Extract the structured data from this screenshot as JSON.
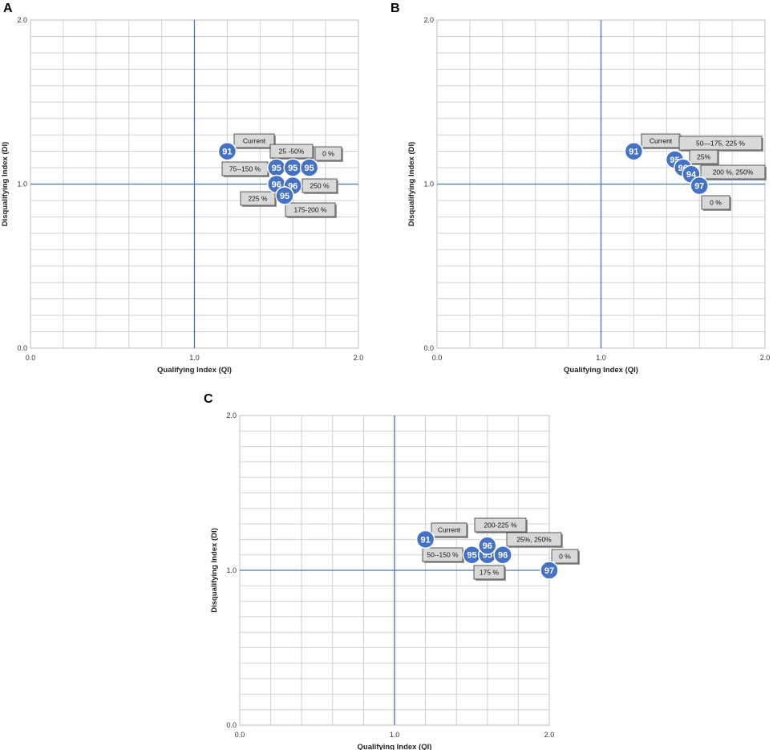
{
  "chart_data": [
    {
      "panel": "A",
      "type": "scatter",
      "xlabel": "Qualifying Index (QI)",
      "ylabel": "Disqualifying Index (DI)",
      "xlim": [
        0,
        2
      ],
      "ylim": [
        0,
        2
      ],
      "xticks": [
        "0.0",
        "1.0",
        "2.0"
      ],
      "yticks": [
        "0.0",
        "1.0",
        "2.0"
      ],
      "reference_lines": {
        "x": 1.0,
        "y": 1.0
      },
      "grid": true,
      "points": [
        {
          "x": 1.2,
          "y": 1.2,
          "score": "91"
        },
        {
          "x": 1.5,
          "y": 1.1,
          "score": "95"
        },
        {
          "x": 1.6,
          "y": 1.1,
          "score": "95"
        },
        {
          "x": 1.7,
          "y": 1.1,
          "score": "95"
        },
        {
          "x": 1.5,
          "y": 1.0,
          "score": "96"
        },
        {
          "x": 1.6,
          "y": 0.99,
          "score": "96"
        },
        {
          "x": 1.55,
          "y": 0.93,
          "score": "95"
        }
      ],
      "labels": [
        "Current",
        "25 -50%",
        "0 %",
        "75--150 %",
        "250 %",
        "225 %",
        "175-200 %"
      ]
    },
    {
      "panel": "B",
      "type": "scatter",
      "xlabel": "Qualifying Index (QI)",
      "ylabel": "Disqualifying Index (DI)",
      "xlim": [
        0,
        2
      ],
      "ylim": [
        0,
        2
      ],
      "xticks": [
        "0.0",
        "1.0",
        "2.0"
      ],
      "yticks": [
        "0.0",
        "1.0",
        "2.0"
      ],
      "reference_lines": {
        "x": 1.0,
        "y": 1.0
      },
      "grid": true,
      "points": [
        {
          "x": 1.2,
          "y": 1.2,
          "score": "91"
        },
        {
          "x": 1.45,
          "y": 1.15,
          "score": "95"
        },
        {
          "x": 1.5,
          "y": 1.1,
          "score": "96"
        },
        {
          "x": 1.55,
          "y": 1.06,
          "score": "94"
        },
        {
          "x": 1.6,
          "y": 0.99,
          "score": "97"
        }
      ],
      "labels": [
        "Current",
        "50—175, 225 %",
        "25%",
        "200 %, 250%",
        "0 %"
      ]
    },
    {
      "panel": "C",
      "type": "scatter",
      "xlabel": "Qualifying Index (QI)",
      "ylabel": "Disqualifying Index (DI)",
      "xlim": [
        0,
        2
      ],
      "ylim": [
        0,
        2
      ],
      "xticks": [
        "0.0",
        "1.0",
        "2.0"
      ],
      "yticks": [
        "0.0",
        "1.0",
        "2.0"
      ],
      "reference_lines": {
        "x": 1.0,
        "y": 1.0
      },
      "grid": true,
      "points": [
        {
          "x": 1.2,
          "y": 1.2,
          "score": "91"
        },
        {
          "x": 1.5,
          "y": 1.1,
          "score": "95"
        },
        {
          "x": 1.6,
          "y": 1.1,
          "score": "95"
        },
        {
          "x": 1.6,
          "y": 1.16,
          "score": "96"
        },
        {
          "x": 1.7,
          "y": 1.1,
          "score": "96"
        },
        {
          "x": 2.0,
          "y": 1.0,
          "score": "97"
        }
      ],
      "labels": [
        "Current",
        "200-225 %",
        "25%, 250%",
        "50--150 %",
        "0 %",
        "175 %"
      ]
    }
  ]
}
